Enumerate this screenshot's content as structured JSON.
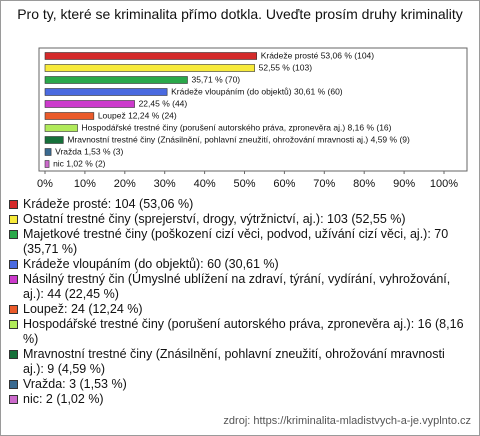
{
  "chart_data": {
    "type": "hbar",
    "title": "Pro ty, které se kriminalita přímo dotkla. Uveďte prosím druhy kriminality",
    "categories": [
      "Krádeže prosté: 104 (53,06 %)",
      "Ostatní trestné činy (sprejerství, drogy, výtržnictví, aj.): 103 (52,55 %)",
      "Majetkové trestné činy (poškození cizí věci, podvod, užívání cizí věci, aj.): 70 (35,71 %)",
      "Krádeže vloupáním (do objektů): 60 (30,61 %)",
      "Násilný trestný čin (Úmyslné ublížení na zdraví, týrání, vydírání, vyhrožování, aj.): 44 (22,45 %)",
      "Loupež: 24 (12,24 %)",
      "Hospodářské trestné činy (porušení autorského práva, zpronevěra aj.): 16 (8,16 %)",
      "Mravnostní trestné činy (Znásilnění, pohlavní zneužití, ohrožování mravnosti aj.): 9 (4,59 %)",
      "Vražda: 3 (1,53 %)",
      "nic: 2 (1,02 %)"
    ],
    "values": [
      53.06,
      52.55,
      35.71,
      30.61,
      22.45,
      12.24,
      8.16,
      4.59,
      1.53,
      1.02
    ],
    "value_labels": [
      "Krádeže prosté 53,06 % (104)",
      "52,55 % (103)",
      "35,71 % (70)",
      "Krádeže vloupáním (do objektů) 30,61 % (60)",
      "22,45 % (44)",
      "Loupež 12,24 % (24)",
      "Hospodářské trestné činy (porušení autorského práva, zpronevěra aj.) 8,16 % (16)",
      "Mravnostní trestné činy (Znásilnění, pohlavní zneužití, ohrožování mravnosti aj.) 4,59 % (9)",
      "Vražda 1,53 % (3)",
      "nic 1,02 % (2)"
    ],
    "colors": [
      "#d42a2a",
      "#f7ea3a",
      "#2aa84a",
      "#4a6ae0",
      "#cc3acc",
      "#ea5a2a",
      "#b0ea5a",
      "#16703a",
      "#3a6a90",
      "#cc6acc"
    ],
    "xlim": [
      0,
      100
    ],
    "xticks": [
      {
        "value": 0,
        "label": "0%"
      },
      {
        "value": 10,
        "label": "10%"
      },
      {
        "value": 20,
        "label": "20%"
      },
      {
        "value": 30,
        "label": "30%"
      },
      {
        "value": 40,
        "label": "40%"
      },
      {
        "value": 50,
        "label": "50%"
      },
      {
        "value": 60,
        "label": "60%"
      },
      {
        "value": 70,
        "label": "70%"
      },
      {
        "value": 80,
        "label": "80%"
      },
      {
        "value": 90,
        "label": "90%"
      },
      {
        "value": 100,
        "label": "100%"
      }
    ],
    "grid": false,
    "source": "zdroj: https://kriminalita-mladistvych-a-je.vyplnto.cz"
  }
}
